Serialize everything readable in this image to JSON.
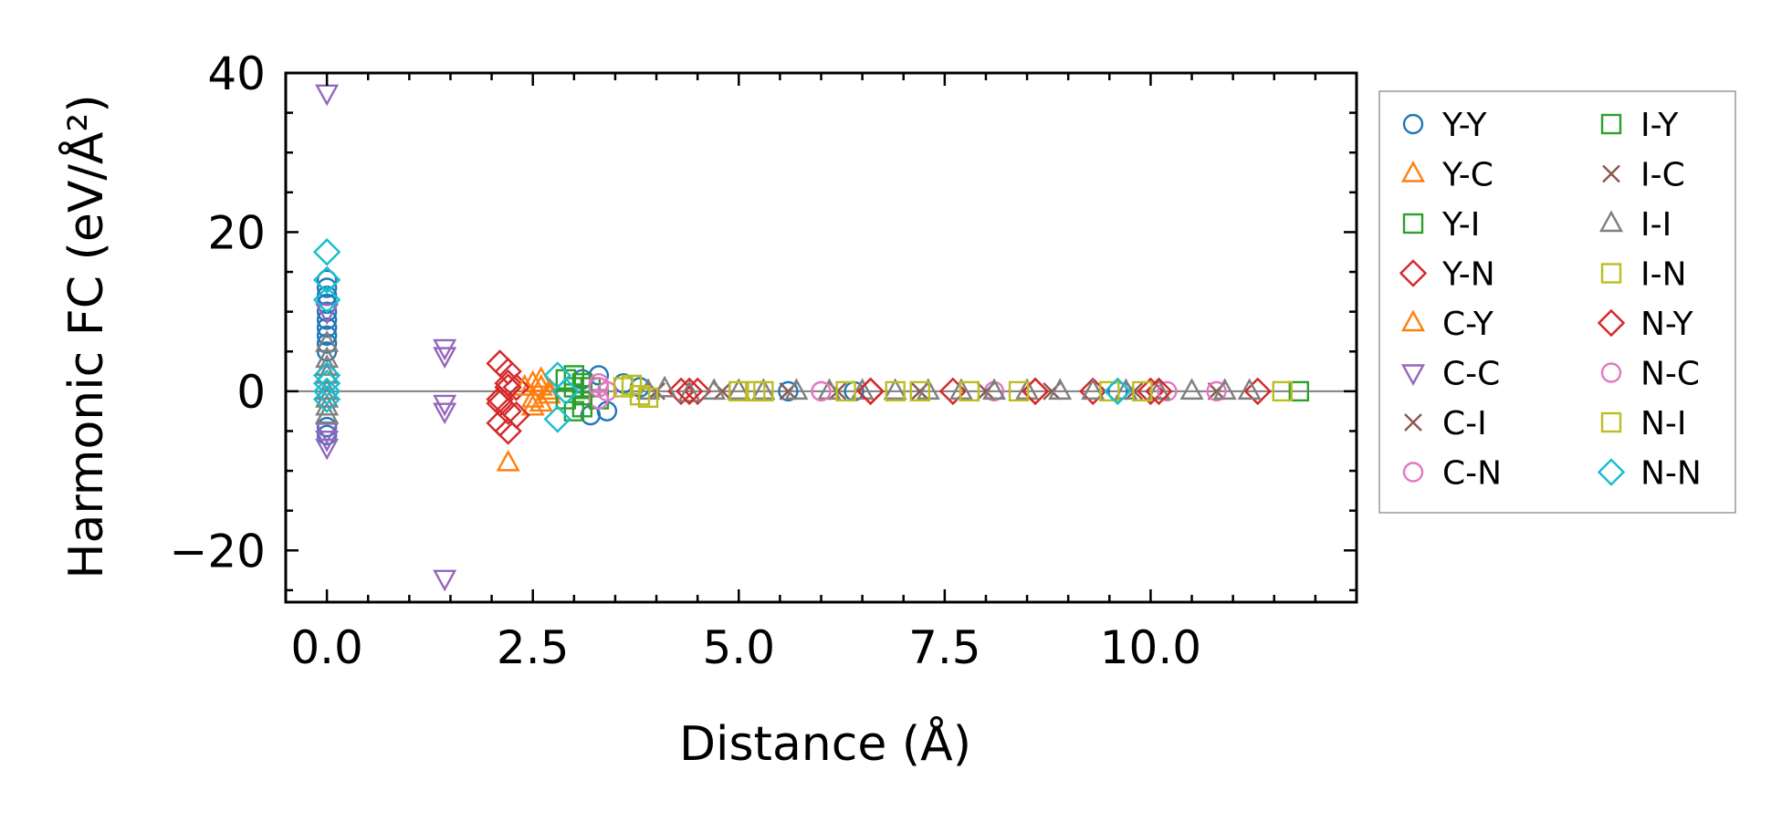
{
  "chart_data": {
    "type": "scatter",
    "xlabel": "Distance (Å)",
    "ylabel": "Harmonic FC (eV/Å²)",
    "xlim": [
      -0.5,
      12.5
    ],
    "ylim": [
      -26.5,
      40
    ],
    "xticks": [
      0.0,
      2.5,
      5.0,
      7.5,
      10.0
    ],
    "xtick_labels": [
      "0.0",
      "2.5",
      "5.0",
      "7.5",
      "10.0"
    ],
    "yticks": [
      -20,
      0,
      20,
      40
    ],
    "ytick_labels": [
      "−20",
      "0",
      "20",
      "40"
    ],
    "legend_position": "outside-right",
    "reference_line_y": 0,
    "series": [
      {
        "name": "Y-Y",
        "marker": "circle",
        "color": "#1f77b4",
        "x": [
          0,
          0,
          0,
          0,
          0,
          0,
          0,
          0,
          0,
          0,
          0,
          0,
          3.1,
          3.2,
          3.3,
          3.4,
          3.6,
          3.8,
          5.6,
          6.4,
          9.6
        ],
        "y": [
          14,
          13,
          12,
          11,
          10,
          9,
          8,
          7,
          6,
          5,
          -4.5,
          -5.5,
          1.5,
          -3,
          2,
          -2.5,
          1,
          0.5,
          0,
          0,
          0
        ]
      },
      {
        "name": "Y-C",
        "marker": "triangle-up",
        "color": "#ff7f0e",
        "x": [
          2.2,
          2.5,
          2.5,
          2.6,
          2.6,
          2.7
        ],
        "y": [
          -9,
          1,
          -2,
          0.5,
          -1.5,
          0
        ]
      },
      {
        "name": "Y-I",
        "marker": "square",
        "color": "#2ca02c",
        "x": [
          2.9,
          3.0,
          3.0,
          3.1,
          3.1,
          3.2,
          3.3
        ],
        "y": [
          1.5,
          -2.5,
          2,
          1,
          -2,
          0.5,
          -1
        ]
      },
      {
        "name": "Y-N",
        "marker": "diamond",
        "color": "#d62728",
        "x": [
          2.1,
          2.1,
          2.1,
          2.2,
          2.2,
          2.2,
          2.2,
          2.3,
          2.3,
          4.3,
          4.5,
          6.6,
          7.6,
          8.6,
          9.3,
          10.0,
          11.3
        ],
        "y": [
          3.5,
          -1,
          -4,
          2.5,
          1,
          -2.5,
          -5,
          0.5,
          -3,
          0,
          0,
          0,
          0,
          0,
          0,
          0,
          0
        ]
      },
      {
        "name": "C-Y",
        "marker": "triangle-up",
        "color": "#ff7f0e",
        "x": [
          2.4,
          2.5,
          2.6,
          2.7
        ],
        "y": [
          0.5,
          -1,
          1.5,
          -0.5
        ]
      },
      {
        "name": "C-C",
        "marker": "triangle-down",
        "color": "#9467bd",
        "x": [
          0,
          0,
          0,
          0,
          0,
          1.43,
          1.43,
          1.43,
          1.43,
          1.43
        ],
        "y": [
          37.5,
          10,
          -5,
          -6,
          -7,
          5.5,
          4.5,
          -1.5,
          -2.5,
          -23.5
        ]
      },
      {
        "name": "C-I",
        "marker": "x",
        "color": "#8c564b",
        "x": [
          4.0,
          5.6,
          7.2,
          8.8,
          10.8
        ],
        "y": [
          0,
          0,
          0,
          0,
          0
        ]
      },
      {
        "name": "C-N",
        "marker": "circle",
        "color": "#e377c2",
        "x": [
          3.3,
          3.3,
          3.4,
          6.0,
          8.1,
          10.2,
          10.8
        ],
        "y": [
          1,
          -1,
          0,
          0,
          0,
          0,
          0
        ]
      },
      {
        "name": "I-Y",
        "marker": "square",
        "color": "#2ca02c",
        "x": [
          2.9,
          3.0,
          3.1,
          11.8
        ],
        "y": [
          -1,
          0.5,
          -0.5,
          0
        ]
      },
      {
        "name": "I-C",
        "marker": "x",
        "color": "#8c564b",
        "x": [
          4.8,
          6.2,
          8.0,
          9.8
        ],
        "y": [
          0,
          0,
          0,
          0
        ]
      },
      {
        "name": "I-I",
        "marker": "triangle-up",
        "color": "#7f7f7f",
        "x": [
          0,
          0,
          0,
          0,
          0,
          0,
          0,
          0,
          3.9,
          4.1,
          4.4,
          4.7,
          5.0,
          5.3,
          5.7,
          6.1,
          6.5,
          6.9,
          7.3,
          7.7,
          8.1,
          8.5,
          8.9,
          9.3,
          9.7,
          10.1,
          10.5,
          10.9,
          11.2
        ],
        "y": [
          6,
          4,
          2,
          0,
          -1,
          -2,
          -3,
          3,
          0,
          0.3,
          -0.3,
          0,
          0,
          0,
          0,
          0,
          0,
          0,
          0,
          0,
          0,
          0,
          0,
          0,
          0,
          0,
          0,
          0,
          0
        ]
      },
      {
        "name": "I-N",
        "marker": "square",
        "color": "#bcbd22",
        "x": [
          3.6,
          3.8,
          5.2,
          6.9,
          7.8,
          9.5,
          11.6
        ],
        "y": [
          0.5,
          -0.5,
          0,
          0,
          0,
          0,
          0
        ]
      },
      {
        "name": "N-Y",
        "marker": "diamond",
        "color": "#d62728",
        "x": [
          2.1,
          2.2,
          4.4,
          6.6,
          8.6,
          10.1
        ],
        "y": [
          -1.5,
          0.5,
          0,
          0,
          0,
          0
        ]
      },
      {
        "name": "N-C",
        "marker": "circle",
        "color": "#e377c2",
        "x": [
          3.3,
          6.0
        ],
        "y": [
          0.5,
          0
        ]
      },
      {
        "name": "N-I",
        "marker": "square",
        "color": "#bcbd22",
        "x": [
          3.7,
          3.9,
          5.0,
          5.3,
          6.3,
          7.2,
          8.4,
          9.9
        ],
        "y": [
          0.8,
          -0.8,
          0,
          0,
          0,
          0,
          0,
          0
        ]
      },
      {
        "name": "N-N",
        "marker": "diamond",
        "color": "#17becf",
        "x": [
          0,
          0,
          0,
          0,
          0,
          0,
          0,
          2.8,
          2.8,
          2.9,
          9.6
        ],
        "y": [
          17.5,
          14,
          11.5,
          2,
          1,
          0,
          -1,
          2,
          -3.5,
          0,
          0
        ]
      }
    ]
  }
}
